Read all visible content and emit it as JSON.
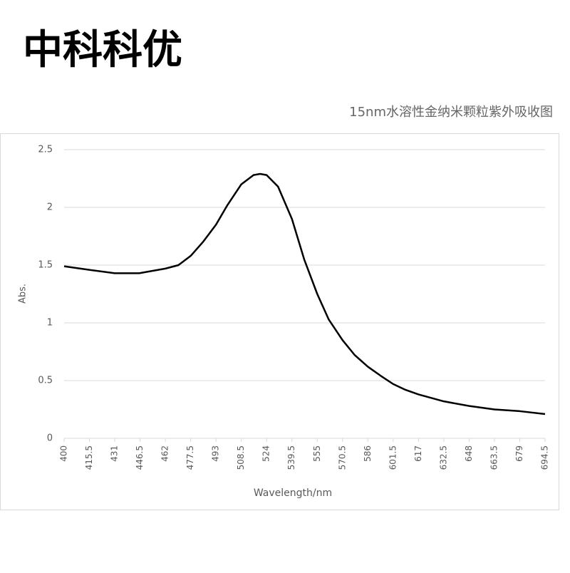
{
  "header": {
    "brand": "中科科优"
  },
  "chart_data": {
    "type": "line",
    "title": "15nm水溶性金纳米颗粒紫外吸收图",
    "x_label": "Wavelength/nm",
    "y_label": "Abs.",
    "x": [
      400,
      415,
      431,
      446,
      462,
      470,
      477.5,
      485,
      493,
      500,
      508.5,
      516,
      520,
      524,
      531,
      539.5,
      547,
      555,
      562,
      570.5,
      578,
      586,
      594,
      601.5,
      609,
      617,
      632.5,
      648,
      663.5,
      679,
      694.5
    ],
    "series": [
      {
        "name": "Abs.",
        "color": "#000000",
        "values": [
          1.49,
          1.46,
          1.43,
          1.43,
          1.47,
          1.5,
          1.58,
          1.7,
          1.85,
          2.02,
          2.2,
          2.28,
          2.29,
          2.28,
          2.18,
          1.9,
          1.55,
          1.25,
          1.03,
          0.85,
          0.72,
          0.62,
          0.54,
          0.47,
          0.42,
          0.38,
          0.32,
          0.28,
          0.25,
          0.235,
          0.21
        ]
      }
    ],
    "xlim": [
      400,
      694.5
    ],
    "xticks": [
      400,
      415.5,
      431,
      446.5,
      462,
      477.5,
      493,
      508.5,
      524,
      539.5,
      555,
      570.5,
      586,
      601.5,
      617,
      632.5,
      648,
      663.5,
      679,
      694.5
    ],
    "ylim": [
      0,
      2.5
    ],
    "yticks": [
      0,
      0.5,
      1,
      1.5,
      2,
      2.5
    ],
    "grid": true
  }
}
